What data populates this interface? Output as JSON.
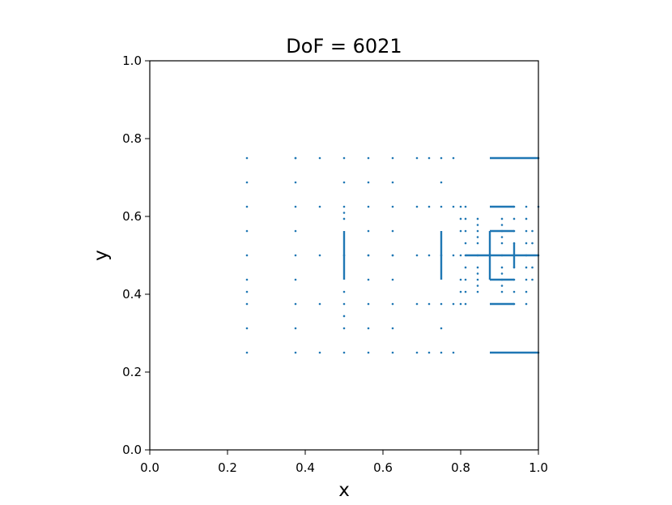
{
  "chart_data": {
    "type": "scatter",
    "title": "DoF = 6021",
    "xlabel": "x",
    "ylabel": "y",
    "xlim": [
      0.0,
      1.0
    ],
    "ylim": [
      0.0,
      1.0
    ],
    "xticks": [
      "0.0",
      "0.2",
      "0.4",
      "0.6",
      "0.8",
      "1.0"
    ],
    "yticks": [
      "0.0",
      "0.2",
      "0.4",
      "0.6",
      "0.8",
      "1.0"
    ],
    "grid": false,
    "legend": "none",
    "marker_color": "#1f77b4",
    "series": [
      {
        "x": [
          0.25,
          0.25,
          0.25,
          0.25,
          0.25,
          0.25,
          0.25,
          0.25,
          0.25,
          0.25,
          0.375,
          0.375,
          0.375,
          0.375,
          0.375,
          0.375,
          0.375,
          0.375,
          0.375,
          0.375,
          0.4375,
          0.4375,
          0.4375,
          0.4375,
          0.4375,
          0.5,
          0.5,
          0.5,
          0.5,
          0.5,
          0.5,
          0.5,
          0.5,
          0.5,
          0.5,
          0.5,
          0.5625,
          0.5625,
          0.5625,
          0.5625,
          0.5625,
          0.5625,
          0.5625,
          0.5625,
          0.5625,
          0.5625,
          0.625,
          0.625,
          0.625,
          0.625,
          0.625,
          0.625,
          0.625,
          0.625,
          0.625,
          0.625,
          0.6875,
          0.6875,
          0.6875,
          0.6875,
          0.6875,
          0.71875,
          0.71875,
          0.71875,
          0.71875,
          0.71875,
          0.75,
          0.75,
          0.75,
          0.75,
          0.75,
          0.75,
          0.75,
          0.78125,
          0.78125,
          0.78125,
          0.78125,
          0.78125,
          0.8,
          0.8,
          0.8,
          0.8,
          0.8,
          0.8,
          0.8,
          0.8125,
          0.8125,
          0.8125,
          0.8125,
          0.8125,
          0.8125,
          0.8125,
          0.8125,
          0.8125,
          0.84375,
          0.84375,
          0.84375,
          0.84375,
          0.84375,
          0.84375,
          0.84375,
          0.84375,
          0.84375,
          0.84375,
          0.84375,
          0.90625,
          0.90625,
          0.90625,
          0.90625,
          0.90625,
          0.90625,
          0.90625,
          0.90625,
          0.90625,
          0.90625,
          0.90625,
          0.9375,
          0.9375,
          0.9375,
          0.9375,
          0.9375,
          0.9375,
          0.9375,
          0.9375,
          0.9375,
          0.96875,
          0.96875,
          0.96875,
          0.96875,
          0.96875,
          0.96875,
          0.96875,
          0.96875,
          0.96875,
          0.984375,
          0.984375,
          0.984375,
          0.984375,
          1.0,
          1.0,
          1.0,
          1.0
        ],
        "y": [
          0.25,
          0.3125,
          0.375,
          0.4062,
          0.4375,
          0.5,
          0.5625,
          0.625,
          0.6875,
          0.75,
          0.25,
          0.3125,
          0.375,
          0.4375,
          0.5,
          0.5625,
          0.625,
          0.6875,
          0.75,
          0.75,
          0.25,
          0.375,
          0.5,
          0.625,
          0.75,
          0.25,
          0.3125,
          0.3438,
          0.375,
          0.4062,
          0.5938,
          0.6094,
          0.625,
          0.6875,
          0.75,
          0.5,
          0.25,
          0.375,
          0.4375,
          0.5,
          0.5625,
          0.625,
          0.75,
          0.3125,
          0.6875,
          0.5,
          0.25,
          0.3125,
          0.375,
          0.4375,
          0.5,
          0.5625,
          0.625,
          0.6875,
          0.75,
          0.5,
          0.25,
          0.375,
          0.5,
          0.625,
          0.75,
          0.25,
          0.375,
          0.5,
          0.625,
          0.75,
          0.25,
          0.3125,
          0.375,
          0.5,
          0.625,
          0.6875,
          0.75,
          0.25,
          0.375,
          0.5,
          0.625,
          0.75,
          0.375,
          0.4062,
          0.4375,
          0.5,
          0.5625,
          0.5938,
          0.625,
          0.375,
          0.4062,
          0.4375,
          0.4688,
          0.5,
          0.5312,
          0.5625,
          0.5938,
          0.625,
          0.4062,
          0.4219,
          0.4375,
          0.4531,
          0.4688,
          0.5,
          0.5312,
          0.5469,
          0.5625,
          0.5781,
          0.5938,
          0.4062,
          0.4219,
          0.4375,
          0.4531,
          0.4688,
          0.5,
          0.5312,
          0.5469,
          0.5625,
          0.5781,
          0.5938,
          0.375,
          0.4062,
          0.4375,
          0.4688,
          0.5,
          0.5312,
          0.5625,
          0.5938,
          0.625,
          0.375,
          0.4062,
          0.4375,
          0.4688,
          0.5,
          0.5312,
          0.5625,
          0.5938,
          0.625,
          0.4375,
          0.4688,
          0.5312,
          0.5625,
          0.25,
          0.5,
          0.625,
          0.75
        ]
      }
    ],
    "dense_vertical_lines": [
      {
        "x": 0.5,
        "y_range": [
          0.4375,
          0.5625
        ]
      },
      {
        "x": 0.75,
        "y_range": [
          0.4375,
          0.5625
        ]
      },
      {
        "x": 0.875,
        "y_range": [
          0.4375,
          0.5625
        ]
      },
      {
        "x": 0.9375,
        "y_range": [
          0.4688,
          0.5312
        ]
      }
    ],
    "dense_horizontal_lines": [
      {
        "y": 0.75,
        "x_range": [
          0.875,
          1.0
        ]
      },
      {
        "y": 0.625,
        "x_range": [
          0.875,
          0.9375
        ]
      },
      {
        "y": 0.5625,
        "x_range": [
          0.875,
          0.9375
        ]
      },
      {
        "y": 0.5,
        "x_range": [
          0.8125,
          1.0
        ]
      },
      {
        "y": 0.4375,
        "x_range": [
          0.875,
          0.9375
        ]
      },
      {
        "y": 0.375,
        "x_range": [
          0.875,
          0.9375
        ]
      },
      {
        "y": 0.25,
        "x_range": [
          0.875,
          1.0
        ]
      }
    ]
  }
}
